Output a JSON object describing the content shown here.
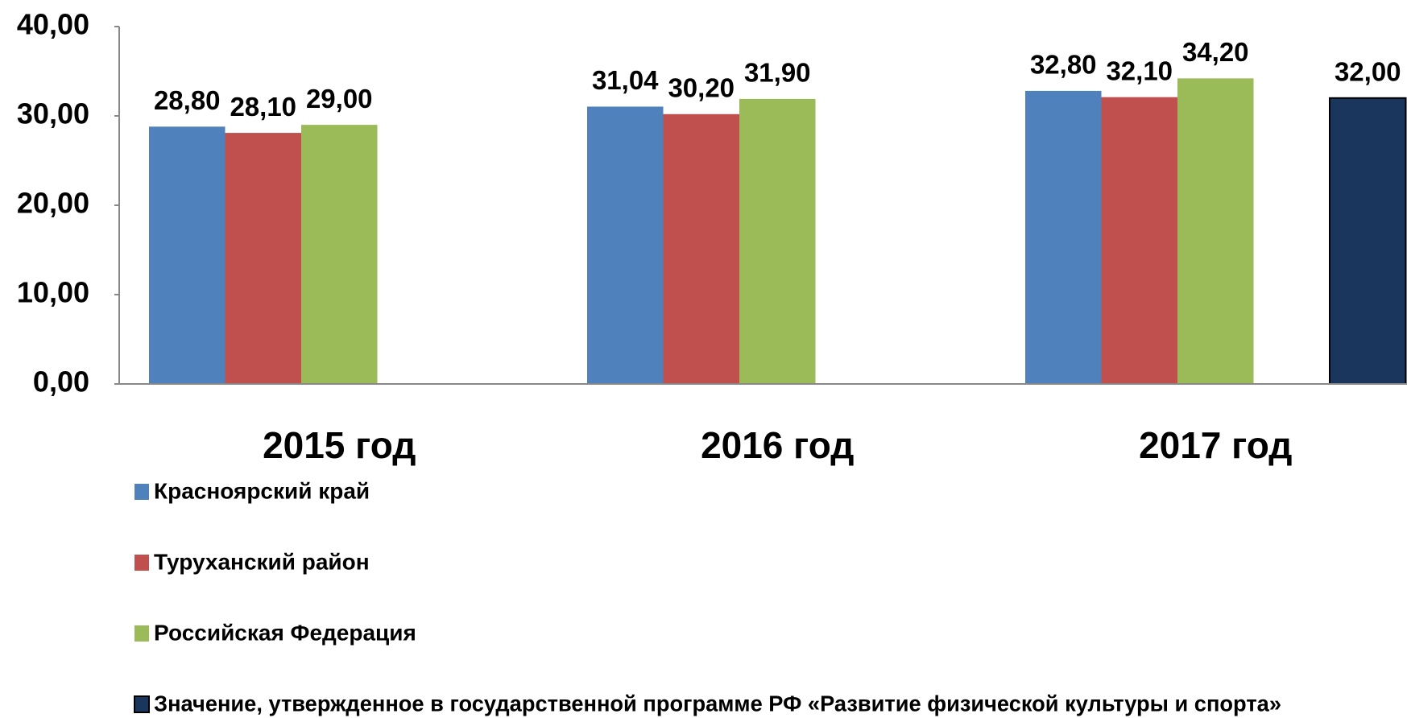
{
  "chart_data": {
    "type": "bar",
    "categories": [
      "2015 год",
      "2016 год",
      "2017 год"
    ],
    "series": [
      {
        "name": "Красноярский край",
        "color": "#4f81bd",
        "values": [
          28.8,
          31.04,
          32.8
        ],
        "value_labels": [
          "28,80",
          "31,04",
          "32,80"
        ]
      },
      {
        "name": "Туруханский район",
        "color": "#c0504d",
        "values": [
          28.1,
          30.2,
          32.1
        ],
        "value_labels": [
          "28,10",
          "30,20",
          "32,10"
        ]
      },
      {
        "name": "Российская Федерация",
        "color": "#9bbb59",
        "values": [
          29.0,
          31.9,
          34.2
        ],
        "value_labels": [
          "29,00",
          "31,90",
          "34,20"
        ]
      },
      {
        "name": "Значение, утвержденное в государственной программе РФ «Развитие физической культуры и спорта»",
        "color": "#1b365d",
        "values": [
          null,
          null,
          32.0
        ],
        "value_labels": [
          null,
          null,
          "32,00"
        ]
      }
    ],
    "ylim": [
      0,
      40
    ],
    "yticks": [
      {
        "value": 0,
        "label": "0,00"
      },
      {
        "value": 10,
        "label": "10,00"
      },
      {
        "value": 20,
        "label": "20,00"
      },
      {
        "value": 30,
        "label": "30,00"
      },
      {
        "value": 40,
        "label": "40,00"
      }
    ],
    "grid": false,
    "legend": "bottom"
  }
}
